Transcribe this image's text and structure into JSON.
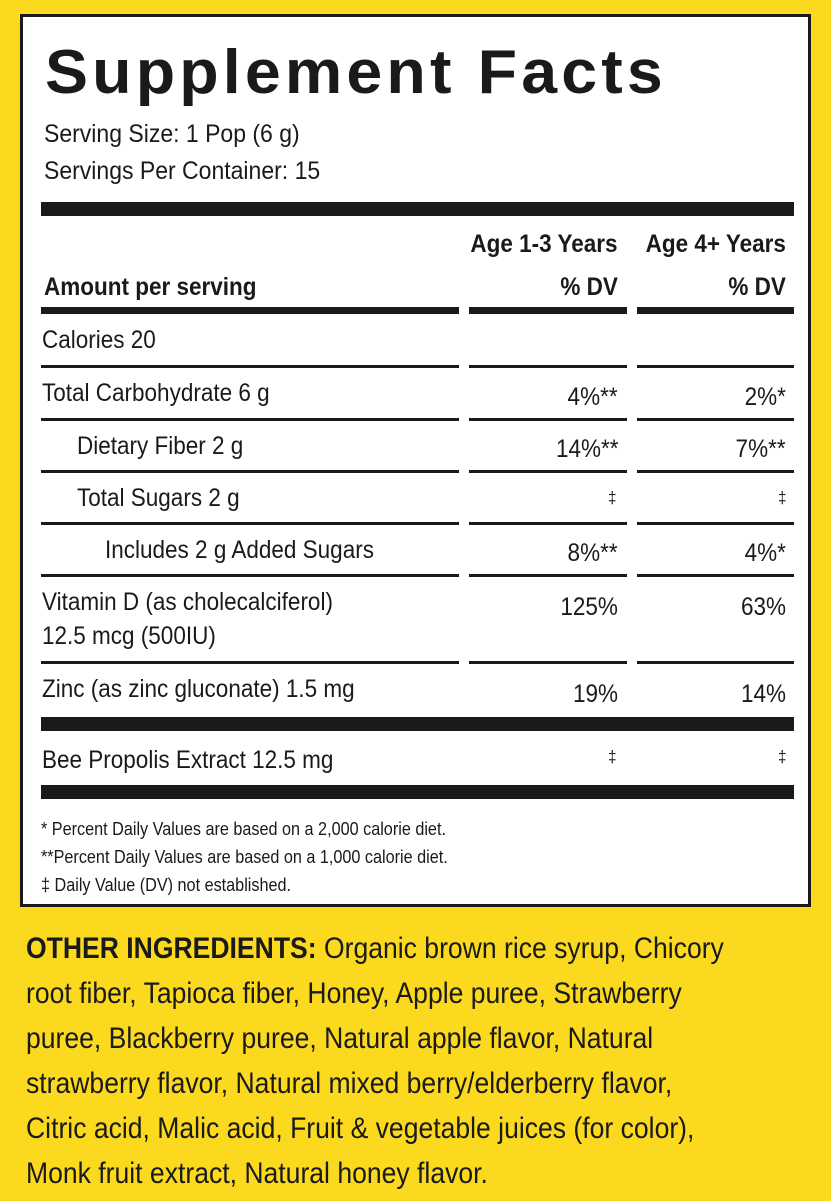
{
  "title": "Supplement Facts",
  "serving_size": "Serving Size: 1 Pop (6 g)",
  "servings_per_container": "Servings Per Container:  15",
  "columns": {
    "col1_header": "Age 1-3 Years",
    "col2_header": "Age 4+ Years",
    "dv_label": "% DV",
    "amount_label": "Amount per serving"
  },
  "rows": [
    {
      "name": "Calories  20",
      "dv1": "",
      "dv2": ""
    },
    {
      "name": "Total Carbohydrate  6 g",
      "dv1": "4%**",
      "dv2": "2%*"
    },
    {
      "name": "Dietary Fiber  2 g",
      "dv1": "14%**",
      "dv2": "7%**"
    },
    {
      "name": "Total Sugars  2 g",
      "dv1": "‡",
      "dv2": "‡"
    },
    {
      "name": "Includes 2 g Added Sugars",
      "dv1": "8%**",
      "dv2": "4%*"
    },
    {
      "name": "Vitamin D (as cholecalciferol)",
      "name2": "12.5 mcg (500IU)",
      "dv1": "125%",
      "dv2": "63%"
    },
    {
      "name": "Zinc (as zinc gluconate)  1.5 mg",
      "dv1": "19%",
      "dv2": "14%"
    },
    {
      "name": "Bee Propolis Extract  12.5 mg",
      "dv1": "‡",
      "dv2": "‡"
    }
  ],
  "footnotes": [
    "* Percent Daily Values are based on a 2,000 calorie diet.",
    "**Percent Daily Values are based on a 1,000 calorie diet.",
    "‡ Daily Value (DV) not established."
  ],
  "ingredients": {
    "label": "OTHER INGREDIENTS:",
    "lines": [
      " Organic brown rice syrup, Chicory",
      "root fiber, Tapioca fiber, Honey, Apple puree, Strawberry",
      "puree, Blackberry puree, Natural apple flavor, Natural",
      "strawberry flavor, Natural mixed berry/elderberry flavor,",
      "Citric acid, Malic acid, Fruit & vegetable juices (for color),",
      "Monk fruit extract, Natural honey flavor."
    ]
  },
  "colors": {
    "background": "#fbd91e",
    "panel": "#ffffff",
    "ink": "#1a1a1a"
  }
}
